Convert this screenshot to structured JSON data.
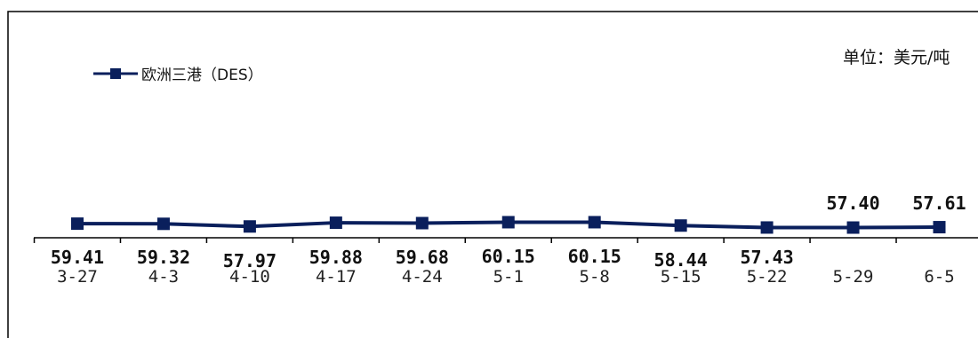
{
  "unit_label": "单位：美元/吨",
  "chart_data": {
    "type": "line",
    "categories": [
      "3-27",
      "4-3",
      "4-10",
      "4-17",
      "4-24",
      "5-1",
      "5-8",
      "5-15",
      "5-22",
      "5-29",
      "6-5"
    ],
    "series": [
      {
        "name": "欧洲三港（DES）",
        "values": [
          59.41,
          59.32,
          57.97,
          59.88,
          59.68,
          60.15,
          60.15,
          58.44,
          57.43,
          57.4,
          57.61
        ]
      }
    ],
    "data_labels": [
      "59.41",
      "59.32",
      "57.97",
      "59.88",
      "59.68",
      "60.15",
      "60.15",
      "58.44",
      "57.43",
      "57.40",
      "57.61"
    ],
    "legend_position": "top-left",
    "grid": false,
    "colors": {
      "line": "#0a1f5c",
      "marker": "#0a1f5c"
    }
  }
}
